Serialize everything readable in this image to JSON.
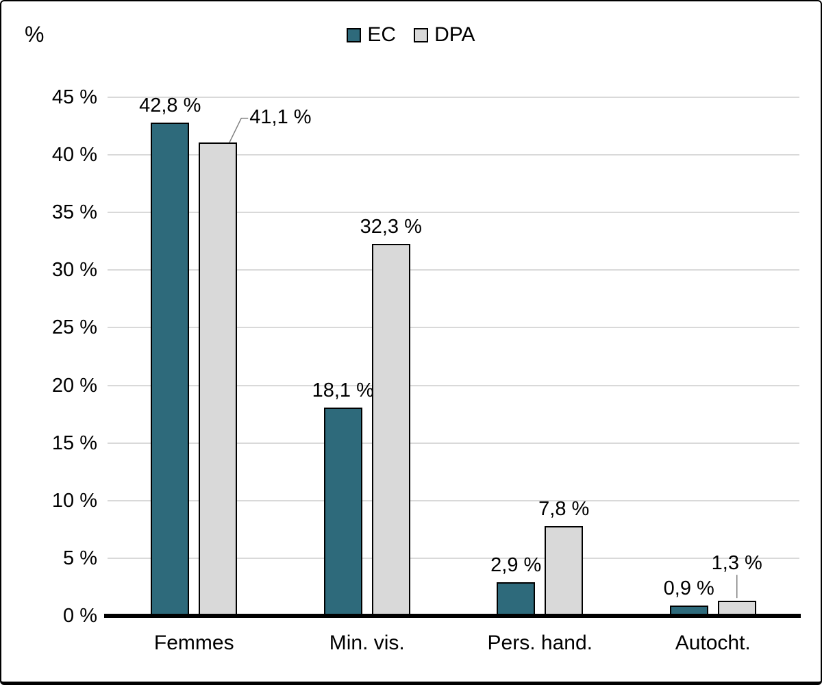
{
  "chart_data": {
    "type": "bar",
    "categories": [
      "Femmes",
      "Min. vis.",
      "Pers. hand.",
      "Autocht."
    ],
    "series": [
      {
        "name": "EC",
        "color": "#2E6A7B",
        "values": [
          42.8,
          18.1,
          2.9,
          0.9
        ],
        "data_labels": [
          "42,8 %",
          "18,1 %",
          "2,9 %",
          "0,9 %"
        ]
      },
      {
        "name": "DPA",
        "color": "#D9D9D9",
        "values": [
          41.1,
          32.3,
          7.8,
          1.3
        ],
        "data_labels": [
          "41,1 %",
          "32,3 %",
          "7,8 %",
          "1,3 %"
        ]
      }
    ],
    "title": "",
    "xlabel": "",
    "ylabel": "%",
    "ylim": [
      0,
      45
    ],
    "ytick_step": 5,
    "ytick_labels": [
      "0 %",
      "5 %",
      "10 %",
      "15 %",
      "20 %",
      "25 %",
      "30 %",
      "35 %",
      "40 %",
      "45 %"
    ],
    "grid": true,
    "legend_position": "top-center",
    "colors": {
      "grid": "#D9D9D9",
      "axis": "#000000",
      "bar_border": "#000000",
      "leader": "#7F7F7F",
      "background": "#FFFFFF",
      "text": "#000000"
    }
  }
}
